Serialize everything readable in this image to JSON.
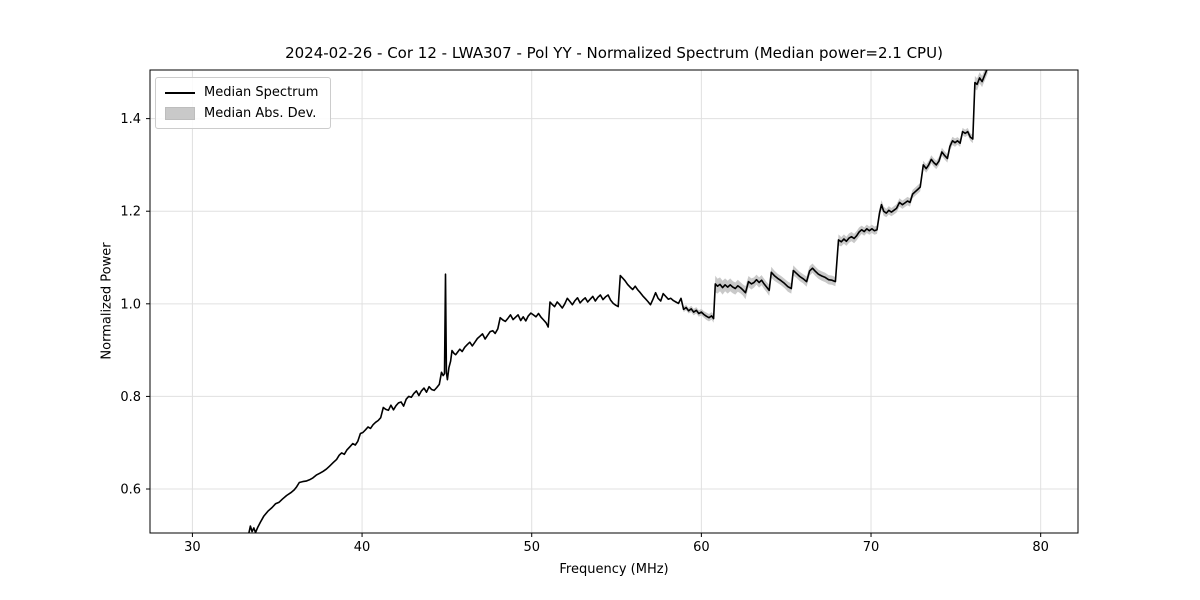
{
  "figure": {
    "title": "2024-02-26 - Cor 12 - LWA307 - Pol YY - Normalized Spectrum (Median power=2.1 CPU)"
  },
  "legend": {
    "items": [
      {
        "label": "Median Spectrum",
        "type": "line",
        "color": "#000000"
      },
      {
        "label": "Median Abs. Dev.",
        "type": "patch",
        "color": "#c9c9c9"
      }
    ]
  },
  "chart_data": {
    "type": "line",
    "title": "2024-02-26 - Cor 12 - LWA307 - Pol YY - Normalized Spectrum (Median power=2.1 CPU)",
    "xlabel": "Frequency (MHz)",
    "ylabel": "Normalized Power",
    "xlim": [
      27.5,
      82.2
    ],
    "ylim": [
      0.505,
      1.505
    ],
    "xticks": [
      30,
      40,
      50,
      60,
      70,
      80
    ],
    "yticks": [
      0.6,
      0.8,
      1.0,
      1.2,
      1.4
    ],
    "grid": true,
    "legend_position": "upper-left",
    "colors": {
      "line": "#000000",
      "band": "#c9c9c9",
      "grid": "#e0e0e0",
      "frame": "#000000"
    },
    "series": [
      {
        "name": "Median Spectrum",
        "style": "black line"
      },
      {
        "name": "Median Abs. Dev.",
        "style": "gray band around line"
      }
    ],
    "points_format": [
      "frequency_mhz",
      "normalized_power",
      "median_abs_dev"
    ],
    "points": [
      [
        33.32,
        0.503,
        0
      ],
      [
        33.42,
        0.52,
        0
      ],
      [
        33.52,
        0.508,
        0
      ],
      [
        33.62,
        0.516,
        0
      ],
      [
        33.72,
        0.506,
        0
      ],
      [
        33.85,
        0.517,
        0
      ],
      [
        34.0,
        0.528,
        0
      ],
      [
        34.2,
        0.541,
        0
      ],
      [
        34.45,
        0.552,
        0
      ],
      [
        34.7,
        0.56,
        0
      ],
      [
        34.9,
        0.568,
        0
      ],
      [
        35.1,
        0.571,
        0
      ],
      [
        35.3,
        0.578,
        0
      ],
      [
        35.55,
        0.586,
        0
      ],
      [
        35.8,
        0.592,
        0
      ],
      [
        36.0,
        0.598,
        0
      ],
      [
        36.15,
        0.605,
        0
      ],
      [
        36.3,
        0.614,
        0
      ],
      [
        36.5,
        0.616,
        0
      ],
      [
        36.7,
        0.617,
        0
      ],
      [
        36.9,
        0.62,
        0
      ],
      [
        37.1,
        0.624,
        0
      ],
      [
        37.3,
        0.63,
        0
      ],
      [
        37.5,
        0.634,
        0
      ],
      [
        37.7,
        0.638,
        0
      ],
      [
        37.9,
        0.643,
        0
      ],
      [
        38.1,
        0.65,
        0
      ],
      [
        38.3,
        0.657,
        0
      ],
      [
        38.5,
        0.664,
        0
      ],
      [
        38.65,
        0.673,
        0
      ],
      [
        38.8,
        0.678,
        0
      ],
      [
        38.95,
        0.675,
        0
      ],
      [
        39.1,
        0.684,
        0
      ],
      [
        39.3,
        0.692,
        0
      ],
      [
        39.45,
        0.698,
        0
      ],
      [
        39.6,
        0.695,
        0
      ],
      [
        39.75,
        0.703,
        0
      ],
      [
        39.9,
        0.72,
        0
      ],
      [
        40.05,
        0.722,
        0
      ],
      [
        40.2,
        0.728,
        0
      ],
      [
        40.35,
        0.734,
        0
      ],
      [
        40.5,
        0.731,
        0
      ],
      [
        40.65,
        0.739,
        0
      ],
      [
        40.8,
        0.744,
        0
      ],
      [
        40.95,
        0.748,
        0
      ],
      [
        41.1,
        0.754,
        0
      ],
      [
        41.25,
        0.776,
        0
      ],
      [
        41.4,
        0.772,
        0
      ],
      [
        41.55,
        0.77,
        0
      ],
      [
        41.7,
        0.781,
        0
      ],
      [
        41.85,
        0.771,
        0
      ],
      [
        42.0,
        0.78,
        0
      ],
      [
        42.15,
        0.786,
        0
      ],
      [
        42.3,
        0.788,
        0
      ],
      [
        42.45,
        0.779,
        0
      ],
      [
        42.6,
        0.794,
        0
      ],
      [
        42.75,
        0.8,
        0
      ],
      [
        42.9,
        0.798,
        0
      ],
      [
        43.05,
        0.806,
        0
      ],
      [
        43.2,
        0.812,
        0
      ],
      [
        43.35,
        0.802,
        0
      ],
      [
        43.5,
        0.812,
        0
      ],
      [
        43.65,
        0.818,
        0
      ],
      [
        43.8,
        0.809,
        0
      ],
      [
        43.95,
        0.821,
        0
      ],
      [
        44.1,
        0.815,
        0
      ],
      [
        44.25,
        0.813,
        0
      ],
      [
        44.4,
        0.819,
        0
      ],
      [
        44.55,
        0.826,
        0
      ],
      [
        44.68,
        0.852,
        0
      ],
      [
        44.78,
        0.845,
        0
      ],
      [
        44.86,
        0.849,
        0
      ],
      [
        44.92,
        1.064,
        0
      ],
      [
        44.97,
        0.852,
        0
      ],
      [
        45.03,
        0.836,
        0
      ],
      [
        45.12,
        0.862,
        0
      ],
      [
        45.22,
        0.876,
        0
      ],
      [
        45.3,
        0.899,
        0
      ],
      [
        45.42,
        0.893,
        0
      ],
      [
        45.52,
        0.89,
        0
      ],
      [
        45.64,
        0.896,
        0
      ],
      [
        45.76,
        0.902,
        0
      ],
      [
        45.9,
        0.897,
        0
      ],
      [
        46.05,
        0.906,
        0
      ],
      [
        46.2,
        0.912,
        0
      ],
      [
        46.35,
        0.917,
        0
      ],
      [
        46.5,
        0.909,
        0
      ],
      [
        46.65,
        0.917,
        0
      ],
      [
        46.8,
        0.925,
        0
      ],
      [
        46.95,
        0.93,
        0
      ],
      [
        47.1,
        0.935,
        0
      ],
      [
        47.25,
        0.924,
        0
      ],
      [
        47.4,
        0.932,
        0
      ],
      [
        47.55,
        0.94,
        0
      ],
      [
        47.7,
        0.942,
        0
      ],
      [
        47.85,
        0.936,
        0
      ],
      [
        48.0,
        0.946,
        0
      ],
      [
        48.14,
        0.97,
        0
      ],
      [
        48.3,
        0.965,
        0
      ],
      [
        48.45,
        0.962,
        0
      ],
      [
        48.6,
        0.969,
        0
      ],
      [
        48.75,
        0.976,
        0
      ],
      [
        48.9,
        0.966,
        0
      ],
      [
        49.05,
        0.971,
        0
      ],
      [
        49.2,
        0.976,
        0
      ],
      [
        49.35,
        0.964,
        0
      ],
      [
        49.5,
        0.972,
        0
      ],
      [
        49.65,
        0.963,
        0
      ],
      [
        49.8,
        0.974,
        0
      ],
      [
        49.95,
        0.98,
        0
      ],
      [
        50.1,
        0.976,
        0
      ],
      [
        50.25,
        0.972,
        0
      ],
      [
        50.4,
        0.979,
        0
      ],
      [
        50.55,
        0.971,
        0
      ],
      [
        50.7,
        0.965,
        0
      ],
      [
        50.85,
        0.959,
        0
      ],
      [
        50.97,
        0.95,
        0
      ],
      [
        51.08,
        1.004,
        0
      ],
      [
        51.2,
        0.999,
        0
      ],
      [
        51.35,
        0.994,
        0
      ],
      [
        51.5,
        1.004,
        0
      ],
      [
        51.65,
        0.998,
        0
      ],
      [
        51.8,
        0.991,
        0
      ],
      [
        51.95,
        1.0,
        0
      ],
      [
        52.1,
        1.012,
        0
      ],
      [
        52.25,
        1.005,
        0
      ],
      [
        52.4,
        0.998,
        0
      ],
      [
        52.55,
        1.007,
        0
      ],
      [
        52.7,
        1.013,
        0
      ],
      [
        52.85,
        1.002,
        0
      ],
      [
        53.0,
        1.008,
        0
      ],
      [
        53.15,
        1.013,
        0
      ],
      [
        53.3,
        1.004,
        0
      ],
      [
        53.45,
        1.01,
        0
      ],
      [
        53.6,
        1.016,
        0
      ],
      [
        53.75,
        1.006,
        0
      ],
      [
        53.9,
        1.014,
        0
      ],
      [
        54.05,
        1.019,
        0
      ],
      [
        54.2,
        1.009,
        0
      ],
      [
        54.35,
        1.015,
        0
      ],
      [
        54.5,
        1.019,
        0
      ],
      [
        54.65,
        1.008,
        0
      ],
      [
        54.8,
        1.001,
        0
      ],
      [
        54.95,
        0.997,
        0
      ],
      [
        55.1,
        0.994,
        0
      ],
      [
        55.22,
        1.061,
        0
      ],
      [
        55.35,
        1.056,
        0
      ],
      [
        55.5,
        1.05,
        0
      ],
      [
        55.65,
        1.042,
        0
      ],
      [
        55.8,
        1.036,
        0
      ],
      [
        55.95,
        1.031,
        0
      ],
      [
        56.1,
        1.038,
        0
      ],
      [
        56.25,
        1.03,
        0
      ],
      [
        56.4,
        1.024,
        0
      ],
      [
        56.55,
        1.017,
        0
      ],
      [
        56.7,
        1.011,
        0
      ],
      [
        56.85,
        1.005,
        0
      ],
      [
        57.0,
        0.998,
        0
      ],
      [
        57.15,
        1.01,
        0
      ],
      [
        57.3,
        1.024,
        0
      ],
      [
        57.45,
        1.012,
        0
      ],
      [
        57.6,
        1.006,
        0
      ],
      [
        57.75,
        1.022,
        0
      ],
      [
        57.9,
        1.016,
        0
      ],
      [
        58.05,
        1.01,
        0
      ],
      [
        58.2,
        1.012,
        0
      ],
      [
        58.35,
        1.007,
        0
      ],
      [
        58.5,
        1.004,
        0
      ],
      [
        58.65,
        1.001,
        0
      ],
      [
        58.8,
        1.012,
        0
      ],
      [
        58.95,
        0.988,
        0.006
      ],
      [
        59.1,
        0.992,
        0.006
      ],
      [
        59.25,
        0.985,
        0.006
      ],
      [
        59.4,
        0.989,
        0.007
      ],
      [
        59.55,
        0.982,
        0.007
      ],
      [
        59.7,
        0.986,
        0.007
      ],
      [
        59.85,
        0.979,
        0.007
      ],
      [
        60.0,
        0.982,
        0.007
      ],
      [
        60.15,
        0.977,
        0.007
      ],
      [
        60.3,
        0.973,
        0.008
      ],
      [
        60.45,
        0.97,
        0.008
      ],
      [
        60.6,
        0.974,
        0.008
      ],
      [
        60.72,
        0.968,
        0.009
      ],
      [
        60.82,
        1.043,
        0.018
      ],
      [
        60.95,
        1.038,
        0.016
      ],
      [
        61.1,
        1.042,
        0.015
      ],
      [
        61.25,
        1.035,
        0.015
      ],
      [
        61.4,
        1.041,
        0.014
      ],
      [
        61.55,
        1.036,
        0.014
      ],
      [
        61.7,
        1.041,
        0.014
      ],
      [
        61.85,
        1.036,
        0.013
      ],
      [
        62.0,
        1.033,
        0.013
      ],
      [
        62.15,
        1.039,
        0.013
      ],
      [
        62.3,
        1.035,
        0.012
      ],
      [
        62.45,
        1.03,
        0.012
      ],
      [
        62.6,
        1.024,
        0.014
      ],
      [
        62.78,
        1.048,
        0.012
      ],
      [
        62.95,
        1.043,
        0.012
      ],
      [
        63.1,
        1.046,
        0.011
      ],
      [
        63.25,
        1.052,
        0.011
      ],
      [
        63.4,
        1.046,
        0.011
      ],
      [
        63.55,
        1.051,
        0.011
      ],
      [
        63.7,
        1.043,
        0.011
      ],
      [
        63.85,
        1.036,
        0.011
      ],
      [
        64.0,
        1.029,
        0.012
      ],
      [
        64.12,
        1.068,
        0.012
      ],
      [
        64.3,
        1.061,
        0.011
      ],
      [
        64.5,
        1.055,
        0.01
      ],
      [
        64.7,
        1.05,
        0.01
      ],
      [
        64.9,
        1.044,
        0.01
      ],
      [
        65.1,
        1.037,
        0.011
      ],
      [
        65.3,
        1.033,
        0.011
      ],
      [
        65.42,
        1.072,
        0.011
      ],
      [
        65.6,
        1.066,
        0.01
      ],
      [
        65.8,
        1.059,
        0.01
      ],
      [
        66.0,
        1.054,
        0.01
      ],
      [
        66.2,
        1.048,
        0.011
      ],
      [
        66.38,
        1.071,
        0.01
      ],
      [
        66.55,
        1.077,
        0.01
      ],
      [
        66.7,
        1.071,
        0.01
      ],
      [
        66.9,
        1.064,
        0.01
      ],
      [
        67.1,
        1.06,
        0.01
      ],
      [
        67.3,
        1.057,
        0.01
      ],
      [
        67.5,
        1.052,
        0.01
      ],
      [
        67.7,
        1.051,
        0.01
      ],
      [
        67.9,
        1.048,
        0.01
      ],
      [
        68.08,
        1.138,
        0.012
      ],
      [
        68.25,
        1.134,
        0.01
      ],
      [
        68.4,
        1.14,
        0.01
      ],
      [
        68.55,
        1.135,
        0.01
      ],
      [
        68.7,
        1.142,
        0.01
      ],
      [
        68.85,
        1.145,
        0.01
      ],
      [
        69.0,
        1.141,
        0.01
      ],
      [
        69.15,
        1.147,
        0.01
      ],
      [
        69.3,
        1.155,
        0.01
      ],
      [
        69.45,
        1.16,
        0.009
      ],
      [
        69.6,
        1.156,
        0.009
      ],
      [
        69.75,
        1.162,
        0.009
      ],
      [
        69.9,
        1.158,
        0.009
      ],
      [
        70.05,
        1.162,
        0.009
      ],
      [
        70.2,
        1.158,
        0.009
      ],
      [
        70.35,
        1.16,
        0.009
      ],
      [
        70.5,
        1.196,
        0.01
      ],
      [
        70.62,
        1.214,
        0.01
      ],
      [
        70.75,
        1.2,
        0.01
      ],
      [
        70.9,
        1.196,
        0.009
      ],
      [
        71.05,
        1.202,
        0.009
      ],
      [
        71.2,
        1.198,
        0.009
      ],
      [
        71.35,
        1.202,
        0.009
      ],
      [
        71.5,
        1.206,
        0.009
      ],
      [
        71.68,
        1.219,
        0.009
      ],
      [
        71.85,
        1.214,
        0.009
      ],
      [
        72.0,
        1.218,
        0.009
      ],
      [
        72.15,
        1.222,
        0.009
      ],
      [
        72.3,
        1.219,
        0.009
      ],
      [
        72.45,
        1.237,
        0.009
      ],
      [
        72.6,
        1.242,
        0.009
      ],
      [
        72.75,
        1.247,
        0.009
      ],
      [
        72.9,
        1.252,
        0.009
      ],
      [
        73.08,
        1.3,
        0.009
      ],
      [
        73.25,
        1.292,
        0.009
      ],
      [
        73.4,
        1.3,
        0.009
      ],
      [
        73.55,
        1.312,
        0.009
      ],
      [
        73.7,
        1.305,
        0.009
      ],
      [
        73.85,
        1.3,
        0.009
      ],
      [
        74.0,
        1.308,
        0.009
      ],
      [
        74.18,
        1.328,
        0.009
      ],
      [
        74.35,
        1.32,
        0.009
      ],
      [
        74.5,
        1.314,
        0.009
      ],
      [
        74.65,
        1.34,
        0.009
      ],
      [
        74.8,
        1.352,
        0.009
      ],
      [
        74.95,
        1.348,
        0.009
      ],
      [
        75.1,
        1.352,
        0.008
      ],
      [
        75.25,
        1.347,
        0.008
      ],
      [
        75.4,
        1.372,
        0.008
      ],
      [
        75.55,
        1.368,
        0.008
      ],
      [
        75.7,
        1.372,
        0.008
      ],
      [
        75.85,
        1.36,
        0.008
      ],
      [
        76.0,
        1.356,
        0.009
      ],
      [
        76.12,
        1.478,
        0.014
      ],
      [
        76.25,
        1.474,
        0.013
      ],
      [
        76.4,
        1.488,
        0.012
      ],
      [
        76.55,
        1.48,
        0.012
      ],
      [
        76.7,
        1.494,
        0.012
      ],
      [
        76.88,
        1.51,
        0.012
      ]
    ]
  }
}
